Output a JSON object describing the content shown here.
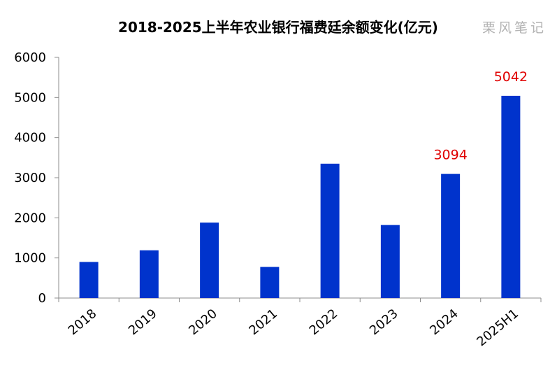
{
  "chart_data": {
    "type": "bar",
    "title": "2018-2025上半年农业银行福费廷余额变化(亿元)",
    "watermark": "栗风笔记",
    "categories": [
      "2018",
      "2019",
      "2020",
      "2021",
      "2022",
      "2023",
      "2024",
      "2025H1"
    ],
    "values": [
      900,
      1190,
      1880,
      775,
      3350,
      1820,
      3094,
      5042
    ],
    "data_labels": [
      null,
      null,
      null,
      null,
      null,
      null,
      "3094",
      "5042"
    ],
    "xlabel": "",
    "ylabel": "",
    "ylim": [
      0,
      6000
    ],
    "yticks": [
      "0",
      "1000",
      "2000",
      "3000",
      "4000",
      "5000",
      "6000"
    ],
    "grid": false,
    "legend": "none",
    "bar_color": "#0033cc",
    "label_color": "#e00000"
  }
}
